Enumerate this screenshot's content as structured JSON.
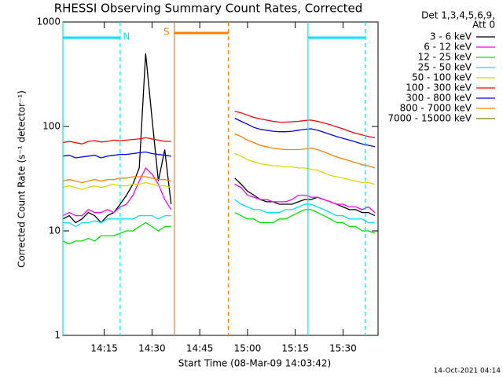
{
  "chart_data": {
    "type": "line",
    "title": "RHESSI Observing Summary Count Rates, Corrected",
    "x_label": "Start Time (08-Mar-09 14:03:42)",
    "y_label": "Corrected Count Rate (s⁻¹ detector⁻¹)",
    "legend_header": [
      "Det 1,3,4,5,6,9,",
      "Att 0"
    ],
    "footer": "14-Oct-2021 04:14",
    "log_y": true,
    "legend": "outside-right",
    "xlim": [
      "14:02",
      "15:41"
    ],
    "xticks": [
      "14:15",
      "14:30",
      "14:45",
      "15:00",
      "15:15",
      "15:30"
    ],
    "ylim": [
      1,
      1000
    ],
    "yticks": [
      1,
      10,
      100,
      1000
    ],
    "intervals": [
      {
        "label": "N",
        "start": "14:02",
        "end": "14:20",
        "color": "#00e0ff"
      },
      {
        "label": "S",
        "start": "14:37",
        "end": "14:54",
        "color": "#ff8000"
      },
      {
        "start": "15:19",
        "end": "15:37",
        "color": "#00e0ff"
      }
    ],
    "x": [
      "14:02",
      "14:04",
      "14:06",
      "14:08",
      "14:10",
      "14:12",
      "14:14",
      "14:16",
      "14:18",
      "14:20",
      "14:22",
      "14:24",
      "14:26",
      "14:28",
      "14:30",
      "14:32",
      "14:34",
      "14:36",
      "14:46",
      "14:56",
      "14:58",
      "15:00",
      "15:02",
      "15:04",
      "15:06",
      "15:08",
      "15:10",
      "15:12",
      "15:14",
      "15:16",
      "15:18",
      "15:20",
      "15:22",
      "15:24",
      "15:26",
      "15:28",
      "15:30",
      "15:32",
      "15:34",
      "15:36",
      "15:38",
      "15:40"
    ],
    "series": [
      {
        "name": "3 - 6 keV",
        "color": "#000000",
        "values": [
          13,
          14,
          12,
          13,
          15,
          14,
          12,
          14,
          15,
          18,
          22,
          28,
          40,
          500,
          120,
          30,
          60,
          18,
          null,
          32,
          28,
          24,
          22,
          20,
          19,
          19,
          18,
          18,
          18,
          19,
          20,
          20,
          21,
          20,
          19,
          18,
          17,
          16,
          16,
          15,
          15,
          14
        ]
      },
      {
        "name": "6 - 12 keV",
        "color": "#ff00ff",
        "values": [
          14,
          15,
          14,
          14,
          16,
          15,
          15,
          16,
          15,
          17,
          18,
          22,
          30,
          40,
          35,
          28,
          20,
          16,
          null,
          28,
          26,
          22,
          21,
          20,
          20,
          19,
          19,
          19,
          20,
          22,
          22,
          21,
          21,
          20,
          19,
          18,
          18,
          17,
          17,
          16,
          17,
          15
        ]
      },
      {
        "name": "12 - 25 keV",
        "color": "#00e000",
        "values": [
          8,
          7.5,
          8,
          8,
          8.5,
          8,
          9,
          9,
          9,
          9.5,
          10,
          10,
          11,
          12,
          11,
          10,
          11,
          11,
          null,
          15,
          14,
          13,
          13,
          12,
          12,
          12,
          13,
          13,
          14,
          15,
          16,
          16,
          15,
          14,
          13,
          12,
          12,
          11,
          11,
          10,
          10,
          9.5
        ]
      },
      {
        "name": "25 - 50 keV",
        "color": "#00e0ff",
        "values": [
          12,
          12,
          11,
          12,
          12,
          12.5,
          12,
          13,
          13,
          13,
          13,
          13,
          14,
          14,
          14,
          13,
          14,
          14,
          null,
          20,
          18,
          17,
          16,
          16,
          15,
          15,
          15,
          16,
          16,
          17,
          18,
          18,
          17,
          16,
          15,
          14,
          14,
          13,
          13,
          13,
          12,
          12
        ]
      },
      {
        "name": "50 - 100 keV",
        "color": "#d8d800",
        "values": [
          26,
          27,
          26,
          25,
          26,
          27,
          26,
          27,
          28,
          27,
          27,
          28,
          28,
          29,
          28,
          27,
          27,
          26,
          null,
          55,
          52,
          48,
          46,
          44,
          43,
          42,
          42,
          41,
          41,
          40,
          40,
          39,
          38,
          36,
          34,
          33,
          32,
          31,
          30,
          29,
          29,
          28
        ]
      },
      {
        "name": "100 - 300 keV",
        "color": "#ff0000",
        "values": [
          70,
          72,
          70,
          68,
          72,
          73,
          71,
          72,
          74,
          73,
          74,
          75,
          76,
          78,
          76,
          74,
          72,
          72,
          null,
          140,
          135,
          128,
          122,
          118,
          115,
          112,
          110,
          110,
          111,
          112,
          114,
          115,
          112,
          108,
          104,
          99,
          95,
          90,
          86,
          83,
          80,
          78
        ]
      },
      {
        "name": "300 - 800 keV",
        "color": "#0000ff",
        "values": [
          52,
          53,
          50,
          51,
          52,
          53,
          50,
          52,
          53,
          54,
          54,
          55,
          56,
          57,
          55,
          54,
          53,
          52,
          null,
          120,
          112,
          105,
          98,
          94,
          92,
          90,
          89,
          89,
          90,
          92,
          94,
          95,
          92,
          88,
          84,
          80,
          77,
          74,
          71,
          68,
          66,
          64
        ]
      },
      {
        "name": "800 - 7000 keV",
        "color": "#ff8000",
        "values": [
          30,
          31,
          30,
          29,
          30,
          31,
          30,
          31,
          31,
          32,
          32,
          33,
          33,
          33,
          32,
          31,
          31,
          30,
          null,
          85,
          80,
          74,
          70,
          66,
          64,
          62,
          61,
          60,
          60,
          60,
          61,
          62,
          60,
          57,
          54,
          51,
          49,
          47,
          45,
          43,
          42,
          40
        ]
      },
      {
        "name": "7000 - 15000 keV",
        "color": "#808000",
        "values": [
          null,
          null,
          null,
          null,
          null,
          null,
          null,
          null,
          null,
          null,
          null,
          null,
          null,
          null,
          null,
          null,
          null,
          null,
          null,
          null,
          null,
          null,
          null,
          null,
          null,
          null,
          null,
          null,
          null,
          null,
          null,
          null,
          null,
          null,
          null,
          null,
          null,
          null,
          null,
          null,
          null,
          null
        ]
      }
    ]
  }
}
